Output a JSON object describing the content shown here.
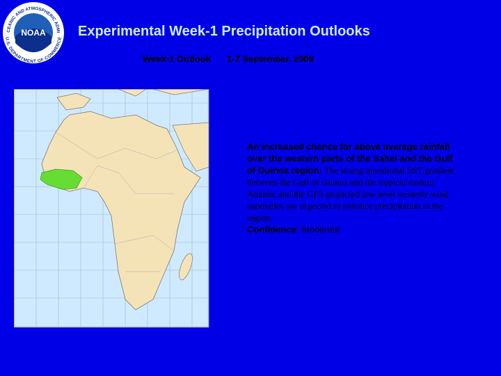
{
  "logo": {
    "ring_text_top": "NATIONAL OCEANIC AND ATMOSPHERIC ADMINISTRATION",
    "name": "NOAA",
    "ring_text_bottom": "U.S. DEPARTMENT OF COMMERCE"
  },
  "header": {
    "title": "Experimental Week-1 Precipitation Outlooks",
    "subtitle_label": "Week-1 Outlook",
    "subtitle_period": "1-7 September, 2009"
  },
  "outlook": {
    "headline": "An increased chance for above average rainfall over the western parts of the Sahel and the Gulf of Guinea region:",
    "body": "The strong meridional SST gradient between the Gulf of Guinea and the tropical eastern Atlantic and the GFS projected low level westerly wind anomalies are expected to enhance precipitation in the region.",
    "confidence_label": "Confidence:",
    "confidence_value": "Moderate"
  }
}
